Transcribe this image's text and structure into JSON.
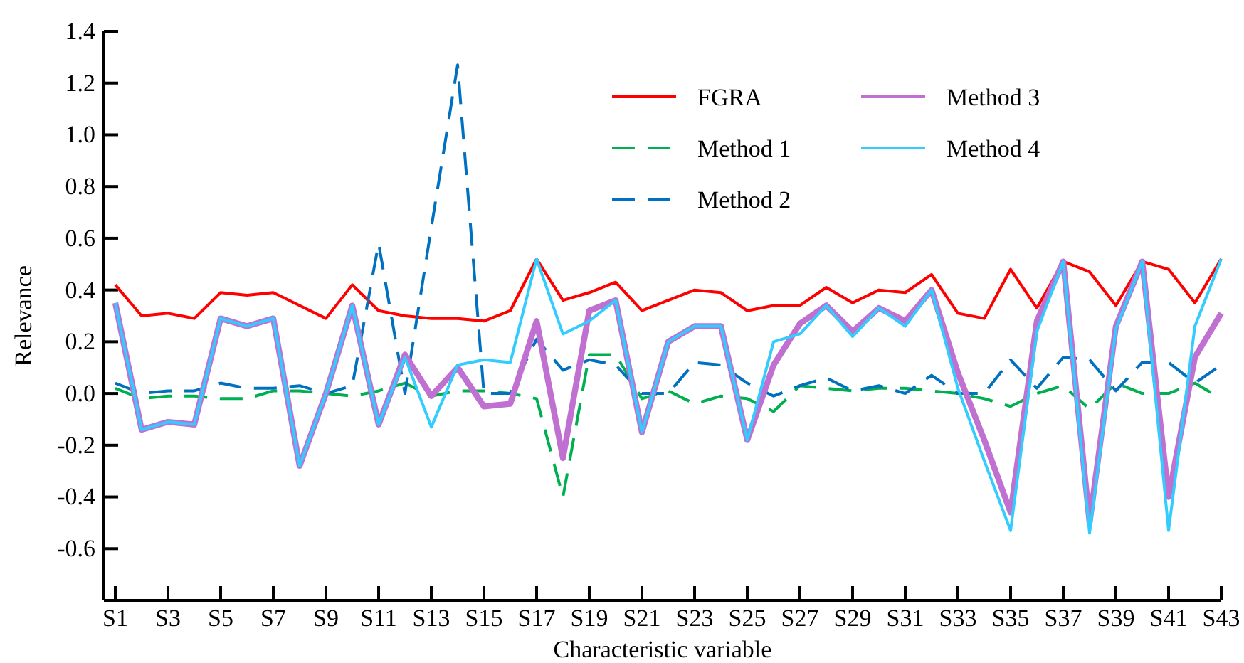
{
  "chart_data": {
    "type": "line",
    "xlabel": "Characteristic variable",
    "ylabel": "Relevance",
    "categories": [
      "S1",
      null,
      "S3",
      null,
      "S5",
      null,
      "S7",
      null,
      "S9",
      null,
      "S11",
      null,
      "S13",
      null,
      "S15",
      null,
      "S17",
      null,
      "S19",
      null,
      "S21",
      null,
      "S23",
      null,
      "S25",
      null,
      "S27",
      null,
      "S29",
      null,
      "S31",
      null,
      "S33",
      null,
      "S35",
      null,
      "S37",
      null,
      "S39",
      null,
      "S41",
      null,
      "S43"
    ],
    "ylim": [
      -0.8,
      1.4
    ],
    "yticks": [
      {
        "value": -0.6,
        "label": "-0.6"
      },
      {
        "value": -0.4,
        "label": "-0.4"
      },
      {
        "value": -0.2,
        "label": "-0.2"
      },
      {
        "value": 0,
        "label": "0.0"
      },
      {
        "value": 0.2,
        "label": "0.2"
      },
      {
        "value": 0.4,
        "label": "0.4"
      },
      {
        "value": 0.6,
        "label": "0.6"
      },
      {
        "value": 0.8,
        "label": "0.8"
      },
      {
        "value": 1,
        "label": "1.0"
      },
      {
        "value": 1.2,
        "label": "1.2"
      },
      {
        "value": 1.4,
        "label": "1.4"
      }
    ],
    "grid": false,
    "legend": "top right",
    "marker": "none",
    "series": [
      {
        "name": "FGRA",
        "color": "#ff0000",
        "line_style": "solid",
        "values": [
          0.42,
          0.3,
          0.31,
          0.29,
          0.39,
          0.38,
          0.39,
          0.34,
          0.29,
          0.42,
          0.32,
          0.3,
          0.29,
          0.29,
          0.28,
          0.32,
          0.52,
          0.36,
          0.39,
          0.43,
          0.32,
          0.36,
          0.4,
          0.39,
          0.32,
          0.34,
          0.34,
          0.41,
          0.35,
          0.4,
          0.39,
          0.46,
          0.31,
          0.29,
          0.48,
          0.33,
          0.51,
          0.47,
          0.34,
          0.51,
          0.48,
          0.35,
          0.52
        ]
      },
      {
        "name": "Method 1",
        "color": "#00b050",
        "line_style": "dashed",
        "values": [
          0.02,
          -0.02,
          -0.01,
          -0.01,
          -0.02,
          -0.02,
          0.01,
          0.01,
          0.0,
          -0.01,
          0.01,
          0.04,
          -0.01,
          0.01,
          0.01,
          0.0,
          -0.02,
          -0.4,
          0.15,
          0.15,
          -0.02,
          0.01,
          -0.04,
          -0.01,
          -0.02,
          -0.07,
          0.03,
          0.02,
          0.01,
          0.02,
          0.02,
          0.01,
          0.0,
          -0.02,
          -0.05,
          0.0,
          0.03,
          -0.06,
          0.04,
          0.0,
          0.0,
          0.04,
          -0.02
        ]
      },
      {
        "name": "Method 2",
        "color": "#0070c0",
        "line_style": "dashed",
        "values": [
          0.04,
          0.0,
          0.01,
          0.01,
          0.04,
          0.02,
          0.02,
          0.03,
          0.0,
          0.03,
          0.58,
          0.0,
          0.64,
          1.27,
          0.0,
          0.0,
          0.21,
          0.09,
          0.13,
          0.11,
          0.0,
          0.0,
          0.12,
          0.11,
          0.04,
          -0.01,
          0.03,
          0.06,
          0.01,
          0.03,
          0.0,
          0.07,
          0.0,
          0.0,
          0.13,
          0.02,
          0.14,
          0.13,
          0.01,
          0.12,
          0.12,
          0.04,
          0.11
        ]
      },
      {
        "name": "Method 3",
        "color": "#c070d0",
        "line_style": "solid",
        "values": [
          0.35,
          -0.14,
          -0.11,
          -0.12,
          0.29,
          0.26,
          0.29,
          -0.28,
          0.0,
          0.34,
          -0.12,
          0.15,
          -0.01,
          0.1,
          -0.05,
          -0.04,
          0.28,
          -0.25,
          0.32,
          0.36,
          -0.15,
          0.2,
          0.26,
          0.26,
          -0.18,
          0.11,
          0.27,
          0.34,
          0.24,
          0.33,
          0.28,
          0.4,
          0.08,
          -0.18,
          -0.46,
          0.28,
          0.51,
          -0.5,
          0.26,
          0.51,
          -0.4,
          0.14,
          0.31
        ]
      },
      {
        "name": "Method 4",
        "color": "#33ccff",
        "line_style": "solid",
        "values": [
          0.35,
          -0.14,
          -0.11,
          -0.12,
          0.29,
          0.26,
          0.29,
          -0.28,
          0.0,
          0.34,
          -0.12,
          0.14,
          -0.13,
          0.11,
          0.13,
          0.12,
          0.52,
          0.23,
          0.28,
          0.36,
          -0.15,
          0.2,
          0.26,
          0.26,
          -0.18,
          0.2,
          0.23,
          0.34,
          0.22,
          0.33,
          0.26,
          0.4,
          0.02,
          -0.26,
          -0.53,
          0.24,
          0.51,
          -0.54,
          0.25,
          0.51,
          -0.53,
          0.26,
          0.52
        ]
      }
    ]
  }
}
